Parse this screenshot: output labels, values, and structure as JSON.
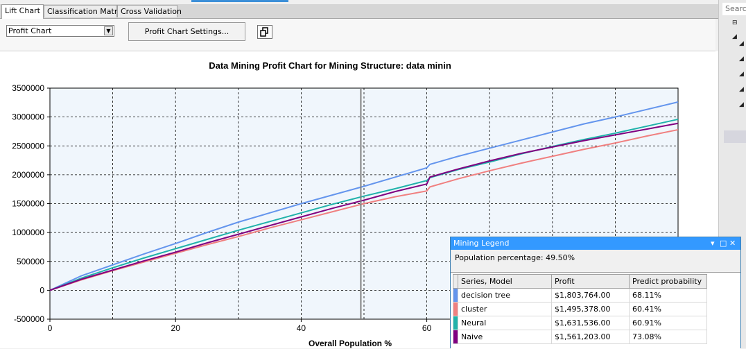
{
  "tabs": [
    {
      "label": "Lift Chart",
      "active": true
    },
    {
      "label": "Classification Matrix",
      "active": false
    },
    {
      "label": "Cross Validation",
      "active": false
    }
  ],
  "toolbar": {
    "chart_type": "Profit Chart",
    "settings_label": "Profit Chart Settings..."
  },
  "sidebar": {
    "search_placeholder": "Search"
  },
  "legend": {
    "title": "Mining Legend",
    "population": "Population percentage: 49.50%",
    "columns": [
      "Series, Model",
      "Profit",
      "Predict probability"
    ],
    "rows": [
      {
        "model": "decision tree",
        "profit": "$1,803,764.00",
        "prob": "68.11%",
        "color": "#6495ed"
      },
      {
        "model": "cluster",
        "profit": "$1,495,378.00",
        "prob": "60.41%",
        "color": "#f08080"
      },
      {
        "model": "Neural",
        "profit": "$1,631,536.00",
        "prob": "60.91%",
        "color": "#20b2aa"
      },
      {
        "model": "Naive",
        "profit": "$1,561,203.00",
        "prob": "73.08%",
        "color": "#800080"
      }
    ]
  },
  "chart_data": {
    "type": "line",
    "title": "Data Mining Profit Chart for Mining Structure: data minin",
    "xlabel": "Overall Population %",
    "ylabel": "",
    "xlim": [
      0,
      100
    ],
    "ylim": [
      -500000,
      3500000
    ],
    "xticks": [
      0,
      20,
      40,
      60
    ],
    "yticks": [
      3500000,
      3000000,
      2500000,
      2000000,
      1500000,
      1000000,
      500000,
      0,
      -500000
    ],
    "grid": true,
    "cursor_x": 49.5,
    "series": [
      {
        "name": "decision tree",
        "color": "#6495ed",
        "x": [
          0,
          5,
          10,
          15,
          20,
          25,
          30,
          35,
          40,
          45,
          50,
          55,
          60,
          60.5,
          65,
          70,
          75,
          80,
          85,
          90,
          95,
          100
        ],
        "y": [
          0,
          250000,
          440000,
          630000,
          810000,
          1000000,
          1180000,
          1340000,
          1500000,
          1650000,
          1800000,
          1960000,
          2120000,
          2180000,
          2320000,
          2460000,
          2600000,
          2740000,
          2880000,
          3000000,
          3130000,
          3260000
        ]
      },
      {
        "name": "cluster",
        "color": "#f08080",
        "x": [
          0,
          5,
          10,
          15,
          20,
          25,
          30,
          35,
          40,
          45,
          50,
          55,
          60,
          60.5,
          65,
          70,
          75,
          80,
          85,
          90,
          95,
          100
        ],
        "y": [
          0,
          180000,
          340000,
          490000,
          640000,
          790000,
          930000,
          1080000,
          1220000,
          1360000,
          1500000,
          1620000,
          1720000,
          1790000,
          1930000,
          2070000,
          2200000,
          2320000,
          2440000,
          2550000,
          2670000,
          2780000
        ]
      },
      {
        "name": "Neural",
        "color": "#20b2aa",
        "x": [
          0,
          5,
          10,
          15,
          20,
          25,
          30,
          35,
          40,
          45,
          50,
          55,
          60,
          60.5,
          65,
          70,
          75,
          80,
          85,
          90,
          95,
          100
        ],
        "y": [
          0,
          210000,
          390000,
          560000,
          720000,
          880000,
          1040000,
          1190000,
          1340000,
          1490000,
          1630000,
          1760000,
          1900000,
          1950000,
          2090000,
          2220000,
          2360000,
          2490000,
          2610000,
          2720000,
          2840000,
          2960000
        ]
      },
      {
        "name": "Naive",
        "color": "#800080",
        "x": [
          0,
          5,
          10,
          15,
          20,
          25,
          30,
          35,
          40,
          45,
          50,
          55,
          60,
          60.5,
          65,
          70,
          75,
          80,
          85,
          90,
          95,
          100
        ],
        "y": [
          0,
          190000,
          350000,
          510000,
          660000,
          820000,
          970000,
          1120000,
          1270000,
          1420000,
          1560000,
          1710000,
          1840000,
          1960000,
          2100000,
          2240000,
          2370000,
          2480000,
          2590000,
          2690000,
          2790000,
          2890000
        ]
      }
    ]
  }
}
